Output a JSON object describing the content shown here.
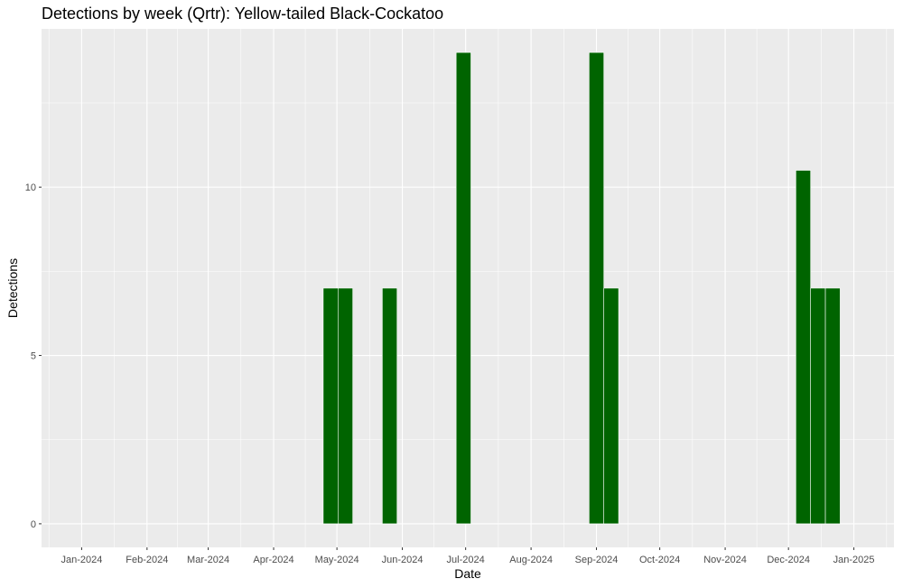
{
  "chart_data": {
    "type": "bar",
    "title": "Detections by week (Qrtr): Yellow-tailed Black-Cockatoo",
    "xlabel": "Date",
    "ylabel": "Detections",
    "x_type": "date",
    "xlim": [
      "2023-12-13",
      "2025-01-20"
    ],
    "ylim": [
      -0.7,
      14.7
    ],
    "y_ticks": [
      0,
      5,
      10
    ],
    "y_tick_labels": [
      "0",
      "5",
      "10"
    ],
    "x_ticks": [
      "2024-01-01",
      "2024-02-01",
      "2024-03-01",
      "2024-04-01",
      "2024-05-01",
      "2024-06-01",
      "2024-07-01",
      "2024-08-01",
      "2024-09-01",
      "2024-10-01",
      "2024-11-01",
      "2024-12-01",
      "2025-01-01"
    ],
    "x_tick_labels": [
      "Jan-2024",
      "Feb-2024",
      "Mar-2024",
      "Apr-2024",
      "May-2024",
      "Jun-2024",
      "Jul-2024",
      "Aug-2024",
      "Sep-2024",
      "Oct-2024",
      "Nov-2024",
      "Dec-2024",
      "Jan-2025"
    ],
    "bar_color": "#006400",
    "panel_color": "#ebebeb",
    "grid": true,
    "bars": [
      {
        "x": "2024-04-28",
        "y": 7
      },
      {
        "x": "2024-05-05",
        "y": 7
      },
      {
        "x": "2024-05-26",
        "y": 7
      },
      {
        "x": "2024-06-30",
        "y": 14
      },
      {
        "x": "2024-09-01",
        "y": 14
      },
      {
        "x": "2024-09-08",
        "y": 7
      },
      {
        "x": "2024-12-08",
        "y": 10.5
      },
      {
        "x": "2024-12-15",
        "y": 7
      },
      {
        "x": "2024-12-22",
        "y": 7
      }
    ]
  }
}
